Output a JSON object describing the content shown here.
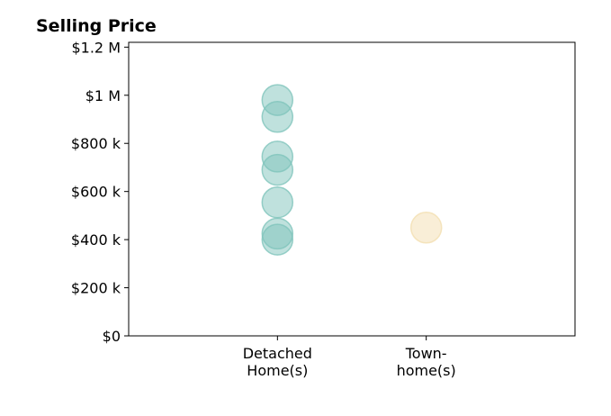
{
  "chart_data": {
    "type": "scatter",
    "title": "Selling Price",
    "xlabel": "",
    "ylabel": "",
    "categories": [
      {
        "lines": [
          "Detached",
          "Home(s)"
        ]
      },
      {
        "lines": [
          "Town-",
          "home(s)"
        ]
      }
    ],
    "x_range": [
      -1,
      2
    ],
    "ylim": [
      0,
      1220000
    ],
    "y_ticks": [
      {
        "value": 0,
        "label": "$0"
      },
      {
        "value": 200000,
        "label": "$200 k"
      },
      {
        "value": 400000,
        "label": "$400 k"
      },
      {
        "value": 600000,
        "label": "$600 k"
      },
      {
        "value": 800000,
        "label": "$800 k"
      },
      {
        "value": 1000000,
        "label": "$1 M"
      },
      {
        "value": 1200000,
        "label": "$1.2 M"
      }
    ],
    "grid": false,
    "legend": "none",
    "series": [
      {
        "category_index": 0,
        "color": "#80C4BC",
        "values": [
          980000,
          910000,
          745000,
          690000,
          555000,
          425000,
          400000
        ]
      },
      {
        "category_index": 1,
        "color": "#F3DEB0",
        "values": [
          450000
        ]
      }
    ]
  }
}
